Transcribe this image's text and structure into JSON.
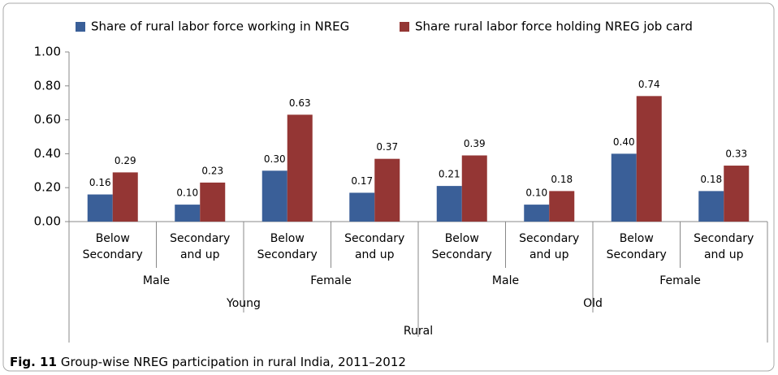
{
  "chart_data": {
    "type": "bar",
    "categories": [
      "Below Secondary",
      "Secondary and up",
      "Below Secondary",
      "Secondary and up",
      "Below Secondary",
      "Secondary and up",
      "Below Secondary",
      "Secondary and up"
    ],
    "category_groups": [
      [
        "Male",
        "Female",
        "Male",
        "Female"
      ],
      [
        "Young",
        "Old"
      ],
      [
        "Rural"
      ]
    ],
    "series": [
      {
        "name": "Share of rural labor force working in NREG",
        "color": "#3a5f98",
        "values": [
          0.16,
          0.1,
          0.3,
          0.17,
          0.21,
          0.1,
          0.4,
          0.18
        ],
        "value_labels": [
          "0.16",
          "0.10",
          "0.30",
          "0.17",
          "0.21",
          "0.10",
          "0.40",
          "0.18"
        ]
      },
      {
        "name": "Share rural labor force holding NREG job card",
        "color": "#943634",
        "values": [
          0.29,
          0.23,
          0.63,
          0.37,
          0.39,
          0.18,
          0.74,
          0.33
        ],
        "value_labels": [
          "0.29",
          "0.23",
          "0.63",
          "0.37",
          "0.39",
          "0.18",
          "0.74",
          "0.33"
        ]
      }
    ],
    "ylim": [
      0,
      1
    ],
    "yticks": [
      {
        "value": 0,
        "label": "0.00"
      },
      {
        "value": 0.2,
        "label": "0.20"
      },
      {
        "value": 0.4,
        "label": "0.40"
      },
      {
        "value": 0.6,
        "label": "0.60"
      },
      {
        "value": 0.8,
        "label": "0.80"
      },
      {
        "value": 1,
        "label": "1.00"
      }
    ],
    "legend": "top",
    "caption_label": "Fig. 11",
    "caption": "Group-wise NREG participation in rural India, 2011–2012"
  }
}
